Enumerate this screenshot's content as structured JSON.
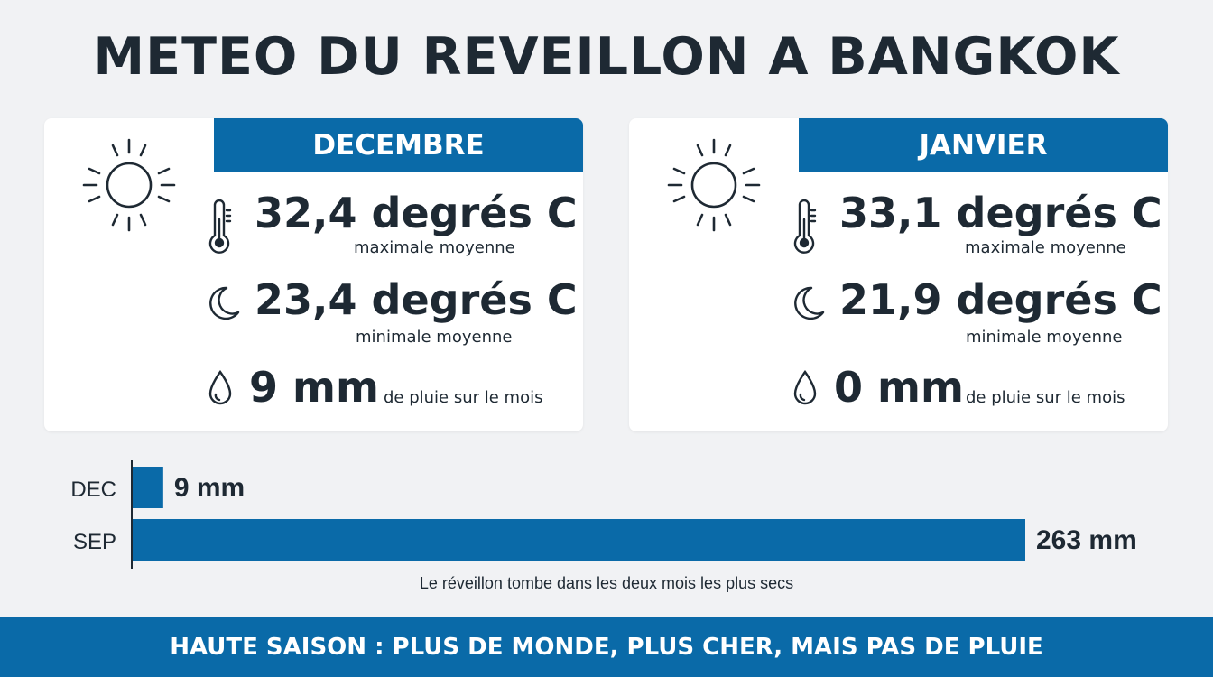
{
  "title": "METEO DU REVEILLON A BANGKOK",
  "cards": [
    {
      "month": "DECEMBRE",
      "max_value": "32,4 degrés C",
      "max_label": "maximale moyenne",
      "min_value": "23,4 degrés C",
      "min_label": "minimale moyenne",
      "rain_value": "9 mm",
      "rain_label": "de pluie sur le mois",
      "icons": [
        "sun-icon",
        "thermometer-icon",
        "moon-icon",
        "raindrop-icon"
      ]
    },
    {
      "month": "JANVIER",
      "max_value": "33,1 degrés C",
      "max_label": "maximale moyenne",
      "min_value": "21,9 degrés C",
      "min_label": "minimale moyenne",
      "rain_value": "0 mm",
      "rain_label": "de pluie sur le mois",
      "icons": [
        "sun-icon",
        "thermometer-icon",
        "moon-icon",
        "raindrop-icon"
      ]
    }
  ],
  "chart_data": {
    "type": "bar",
    "orientation": "horizontal",
    "categories": [
      "DEC",
      "SEP"
    ],
    "values": [
      9,
      263
    ],
    "value_labels": [
      "9 mm",
      "263 mm"
    ],
    "unit": "mm",
    "xlim": [
      0,
      263
    ],
    "grid": false,
    "color": "#0a6aa8"
  },
  "caption": "Le réveillon tombe dans les deux mois les plus secs",
  "banner": "HAUTE SAISON : PLUS DE MONDE, PLUS CHER, MAIS PAS DE PLUIE",
  "colors": {
    "accent": "#0a6aa8",
    "text": "#1e2933",
    "background": "#f1f2f4"
  }
}
